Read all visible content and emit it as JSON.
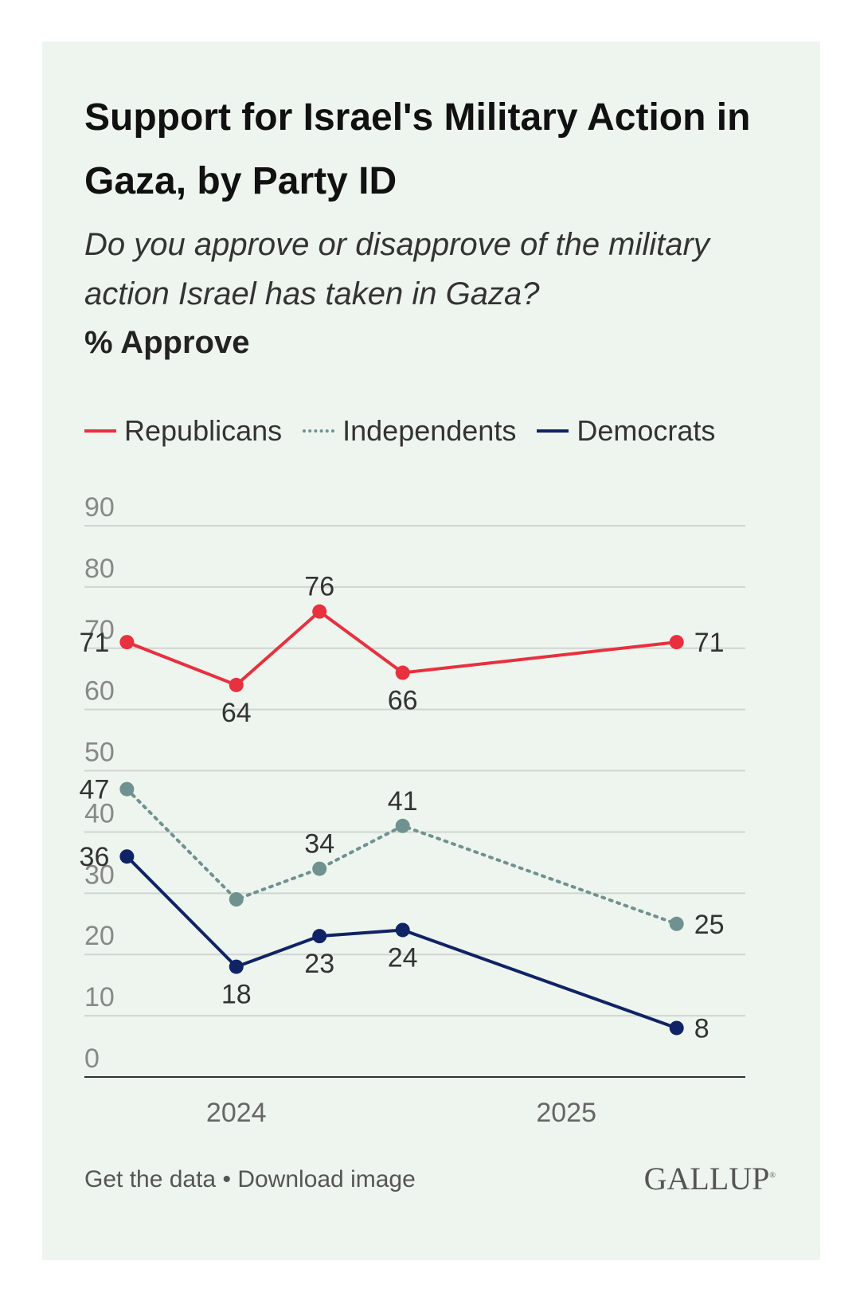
{
  "title": "Support for Israel's Military Action in Gaza, by Party ID",
  "subtitle": "Do you approve or disapprove of the military action Israel has taken in Gaza?",
  "measure": "% Approve",
  "footer": {
    "get_data": "Get the data",
    "separator": "•",
    "download": "Download image"
  },
  "logo": {
    "text": "GALLUP",
    "mark": "®"
  },
  "colors": {
    "background": "#eef5ee",
    "republicans": "#e8303f",
    "independents": "#6f9290",
    "democrats": "#0f2366",
    "grid": "#d0d5d0",
    "axis": "#333333"
  },
  "chart_data": {
    "type": "line",
    "ylim": [
      0,
      90
    ],
    "yticks": [
      0,
      10,
      20,
      30,
      40,
      50,
      60,
      70,
      80,
      90
    ],
    "xlim": [
      "2023-09-15",
      "2025-09-15"
    ],
    "xticks": [
      {
        "label": "2024",
        "date": "2024-03-01"
      },
      {
        "label": "2025",
        "date": "2025-03-01"
      }
    ],
    "x": [
      "2023-11-01",
      "2024-03-01",
      "2024-06-01",
      "2024-09-01",
      "2025-07-01"
    ],
    "series": [
      {
        "name": "Republicans",
        "style": "solid",
        "color": "#e8303f",
        "values": [
          71,
          64,
          76,
          66,
          71
        ],
        "labels": [
          "71",
          "64",
          "76",
          "66",
          "71"
        ],
        "label_positions": [
          "left",
          "below",
          "above",
          "below",
          "right"
        ]
      },
      {
        "name": "Independents",
        "style": "dotted",
        "color": "#6f9290",
        "values": [
          47,
          29,
          34,
          41,
          25
        ],
        "labels": [
          "47",
          "",
          "34",
          "41",
          "25"
        ],
        "label_positions": [
          "left",
          "below",
          "above",
          "above",
          "right"
        ]
      },
      {
        "name": "Democrats",
        "style": "solid",
        "color": "#0f2366",
        "values": [
          36,
          18,
          23,
          24,
          8
        ],
        "labels": [
          "36",
          "18",
          "23",
          "24",
          "8"
        ],
        "label_positions": [
          "left",
          "below",
          "below",
          "below",
          "right"
        ]
      }
    ],
    "grid": true,
    "legend": "top"
  }
}
